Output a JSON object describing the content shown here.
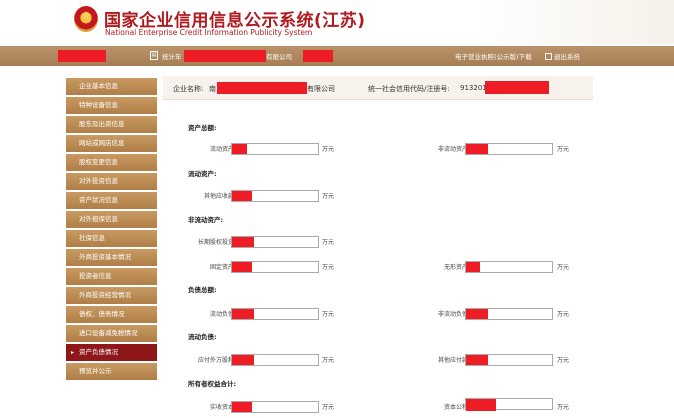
{
  "header": {
    "title_cn": "国家企业信用信息公示系统(江苏)",
    "title_en": "National Enterprise Credit Information Publicity System"
  },
  "navbar": {
    "company_partial": "有限公司",
    "prefix_partial": "统计年",
    "download_link": "电子营业执照(公示版)下载",
    "logout_link": "退出系统"
  },
  "sidebar": {
    "items": [
      {
        "label": "企业基本信息",
        "active": false
      },
      {
        "label": "特种设备信息",
        "active": false
      },
      {
        "label": "股东及出资信息",
        "active": false
      },
      {
        "label": "网站或网店信息",
        "active": false
      },
      {
        "label": "股权变更信息",
        "active": false
      },
      {
        "label": "对外投资信息",
        "active": false
      },
      {
        "label": "资产状况信息",
        "active": false
      },
      {
        "label": "对外担保信息",
        "active": false
      },
      {
        "label": "社保信息",
        "active": false
      },
      {
        "label": "外商投资基本情况",
        "active": false
      },
      {
        "label": "投资者信息",
        "active": false
      },
      {
        "label": "外商投资经营情况",
        "active": false
      },
      {
        "label": "债权、债务情况",
        "active": false
      },
      {
        "label": "进口设备减免税情况",
        "active": false
      },
      {
        "label": "资产负债情况",
        "active": true
      },
      {
        "label": "预览并公示",
        "active": false
      }
    ]
  },
  "info": {
    "name_label": "企业名称:",
    "name_prefix": "南",
    "name_suffix": "有限公司",
    "code_label": "统一社会信用代码/注册号:",
    "code_prefix": "913201"
  },
  "form": {
    "unit": "万元",
    "sections": [
      {
        "title": "资产总额:"
      },
      {
        "title": "流动资产:"
      },
      {
        "title": "非流动资产:"
      },
      {
        "title": "负债总额:"
      },
      {
        "title": "流动负债:"
      },
      {
        "title": "所有者权益合计:"
      }
    ],
    "fields": {
      "current_assets": "流动资产",
      "non_current_assets": "非流动资产",
      "other_receivables": "其他应收款",
      "long_term_equity": "长期股权投资",
      "fixed_assets": "固定资产",
      "intangible_assets": "无形资产",
      "current_liabilities": "流动负债",
      "non_current_liabilities": "非流动负债",
      "accounts_payable": "应付外方股利",
      "other_payables": "其他应付款",
      "paid_in_capital": "实收资本",
      "capital_reserve": "资本公积"
    }
  },
  "colors": {
    "brand_red": "#b01a1f",
    "redaction": "#ee1c25",
    "nav_brown": "#a77e55",
    "active_item": "#8e1719"
  }
}
